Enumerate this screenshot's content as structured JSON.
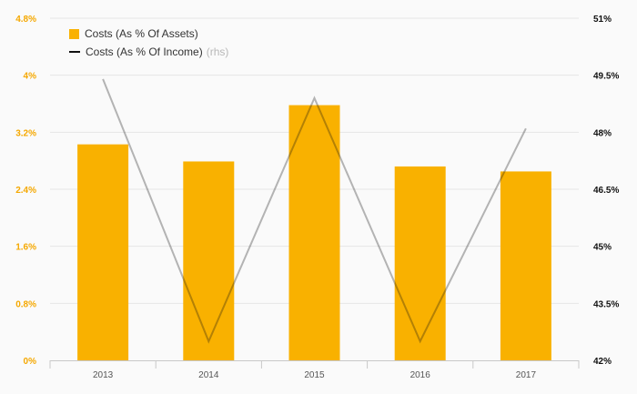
{
  "chart_data": {
    "type": "bar",
    "categories": [
      "2013",
      "2014",
      "2015",
      "2016",
      "2017"
    ],
    "series": [
      {
        "name": "Costs (As % Of Assets)",
        "type": "bar",
        "axis": "left",
        "color": "#f9b100",
        "values": [
          3.03,
          2.79,
          3.58,
          2.72,
          2.65
        ]
      },
      {
        "name": "Costs (As % Of Income)",
        "type": "line",
        "axis": "right",
        "color": "#111111",
        "values": [
          49.4,
          42.5,
          48.9,
          42.5,
          48.1
        ]
      }
    ],
    "legend_suffix": "(rhs)",
    "left_axis": {
      "ylim": [
        0,
        4.8
      ],
      "ticks": [
        0,
        0.8,
        1.6,
        2.4,
        3.2,
        4,
        4.8
      ],
      "tick_labels": [
        "0%",
        "0.8%",
        "1.6%",
        "2.4%",
        "3.2%",
        "4%",
        "4.8%"
      ],
      "color": "#f5a800"
    },
    "right_axis": {
      "ylim": [
        42,
        51
      ],
      "ticks": [
        42,
        43.5,
        45,
        46.5,
        48,
        49.5,
        51
      ],
      "tick_labels": [
        "42%",
        "43.5%",
        "45%",
        "46.5%",
        "48%",
        "49.5%",
        "51%"
      ],
      "color": "#111111"
    },
    "grid": true,
    "legend_position": "top-left",
    "title": "",
    "xlabel": "",
    "ylabel": ""
  }
}
